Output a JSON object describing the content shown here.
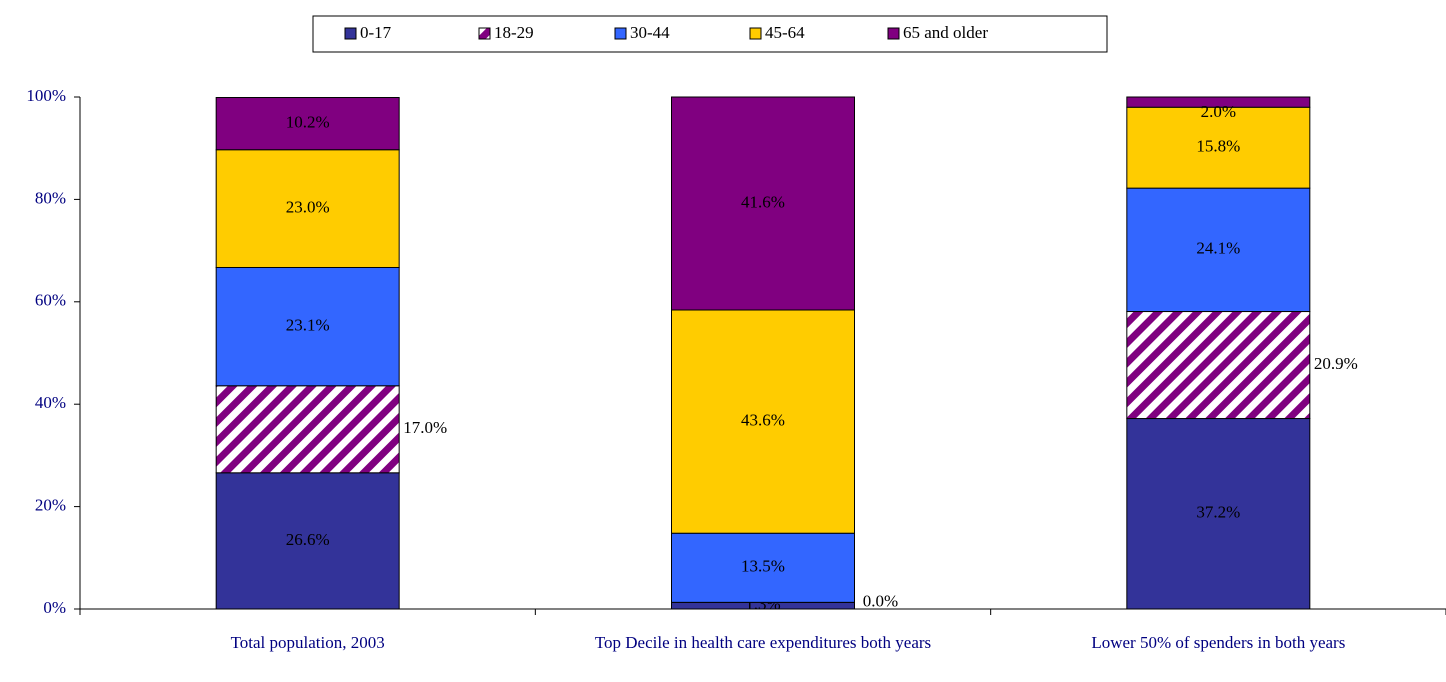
{
  "chart_data": {
    "type": "stacked_bar",
    "categories": [
      "Total population, 2003",
      "Top Decile in health care expenditures both years",
      "Lower 50% of spenders in both years"
    ],
    "series": [
      {
        "name": "0-17",
        "color": "#333399",
        "values": [
          26.6,
          1.3,
          37.2
        ],
        "value_labels": [
          "26.6%",
          "1.3%",
          "37.2%"
        ]
      },
      {
        "name": "18-29",
        "color": "#800080",
        "hatch": true,
        "values": [
          17.0,
          0.0,
          20.9
        ],
        "value_labels": [
          "17.0%",
          "0.0%",
          "20.9%"
        ]
      },
      {
        "name": "30-44",
        "color": "#3366ff",
        "values": [
          23.1,
          13.5,
          24.1
        ],
        "value_labels": [
          "23.1%",
          "13.5%",
          "24.1%"
        ]
      },
      {
        "name": "45-64",
        "color": "#ffcc00",
        "values": [
          23.0,
          43.6,
          15.8
        ],
        "value_labels": [
          "23.0%",
          "43.6%",
          "15.8%"
        ]
      },
      {
        "name": "65 and older",
        "color": "#800080",
        "values": [
          10.2,
          41.6,
          2.0
        ],
        "value_labels": [
          "10.2%",
          "41.6%",
          "2.0%"
        ]
      }
    ],
    "ylim": [
      0,
      100
    ],
    "yticks": [
      {
        "value": 0,
        "label": "0%"
      },
      {
        "value": 20,
        "label": "20%"
      },
      {
        "value": 40,
        "label": "40%"
      },
      {
        "value": 60,
        "label": "60%"
      },
      {
        "value": 80,
        "label": "80%"
      },
      {
        "value": 100,
        "label": "100%"
      }
    ],
    "legend": "top"
  }
}
